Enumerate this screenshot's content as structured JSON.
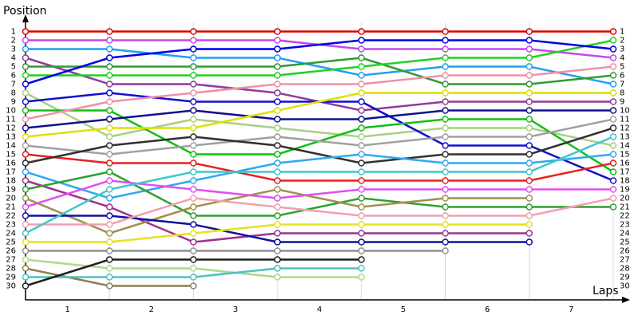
{
  "chart_data": {
    "type": "line",
    "ylabel": "Position",
    "xlabel": "Laps",
    "x": [
      0,
      1,
      2,
      3,
      4,
      5,
      6,
      7
    ],
    "xlim": [
      0,
      7
    ],
    "xticks": [
      {
        "value": 0.5,
        "label": "1"
      },
      {
        "value": 1.5,
        "label": "2"
      },
      {
        "value": 2.5,
        "label": "3"
      },
      {
        "value": 3.5,
        "label": "4"
      },
      {
        "value": 4.5,
        "label": "5"
      },
      {
        "value": 5.5,
        "label": "6"
      },
      {
        "value": 6.5,
        "label": "7"
      }
    ],
    "xgrid": [
      1,
      2,
      3,
      4,
      5,
      6,
      7
    ],
    "ylim": [
      31.5,
      0
    ],
    "inverted": true,
    "yticks": [
      1,
      2,
      3,
      4,
      5,
      6,
      7,
      8,
      9,
      10,
      11,
      12,
      13,
      14,
      15,
      16,
      17,
      18,
      19,
      20,
      21,
      22,
      23,
      24,
      25,
      26,
      27,
      28,
      29,
      30
    ],
    "series": [
      {
        "color": "#e00000",
        "values": [
          1,
          1,
          1,
          1,
          1,
          1,
          1,
          1
        ]
      },
      {
        "color": "#c448f0",
        "values": [
          2,
          2,
          2,
          2,
          3,
          3,
          3,
          4
        ]
      },
      {
        "color": "#20a0f0",
        "values": [
          3,
          3,
          4,
          4,
          6,
          5,
          5,
          7
        ]
      },
      {
        "color": "#903c9c",
        "values": [
          4,
          7,
          7,
          8,
          10,
          9,
          9,
          9
        ]
      },
      {
        "color": "#309a30",
        "values": [
          5,
          5,
          5,
          5,
          4,
          7,
          7,
          6
        ]
      },
      {
        "color": "#22d022",
        "values": [
          6,
          6,
          6,
          6,
          5,
          4,
          4,
          2
        ]
      },
      {
        "color": "#0000e8",
        "values": [
          7,
          4,
          3,
          3,
          2,
          2,
          2,
          3
        ]
      },
      {
        "color": "#a8d080",
        "values": [
          8,
          13,
          11,
          12,
          13,
          12,
          12,
          14
        ]
      },
      {
        "color": "#1010d0",
        "values": [
          9,
          8,
          9,
          9,
          9,
          14,
          14,
          18
        ]
      },
      {
        "color": "#10c010",
        "values": [
          10,
          10,
          15,
          15,
          12,
          11,
          11,
          17
        ]
      },
      {
        "color": "#f090a8",
        "values": [
          11,
          9,
          8,
          7,
          7,
          6,
          6,
          5
        ]
      },
      {
        "color": "#101090",
        "values": [
          12,
          11,
          10,
          11,
          11,
          10,
          10,
          10
        ]
      },
      {
        "color": "#e0e000",
        "values": [
          13,
          12,
          12,
          10,
          8,
          8,
          8,
          8
        ]
      },
      {
        "color": "#a0a0a0",
        "values": [
          14,
          15,
          14,
          13,
          14,
          13,
          13,
          11
        ]
      },
      {
        "color": "#e82020",
        "values": [
          15,
          16,
          16,
          18,
          18,
          18,
          18,
          16
        ]
      },
      {
        "color": "#303030",
        "values": [
          16,
          14,
          13,
          14,
          16,
          15,
          15,
          12
        ]
      },
      {
        "color": "#30a8f0",
        "values": [
          17,
          20,
          18,
          16,
          15,
          16,
          16,
          15
        ]
      },
      {
        "color": "#a03090",
        "values": [
          18,
          21,
          25,
          24,
          24,
          24,
          24,
          null
        ]
      },
      {
        "color": "#30a030",
        "values": [
          19,
          17,
          22,
          22,
          20,
          21,
          21,
          21
        ]
      },
      {
        "color": "#a09050",
        "values": [
          20,
          24,
          21,
          19,
          21,
          20,
          20,
          null
        ]
      },
      {
        "color": "#e050f0",
        "values": [
          21,
          18,
          19,
          20,
          19,
          19,
          19,
          19
        ]
      },
      {
        "color": "#1010a0",
        "values": [
          22,
          22,
          23,
          25,
          25,
          25,
          25,
          null
        ]
      },
      {
        "color": "#f0a0b0",
        "values": [
          23,
          23,
          20,
          21,
          22,
          22,
          22,
          20
        ]
      },
      {
        "color": "#40c8c8",
        "values": [
          24,
          19,
          17,
          17,
          17,
          17,
          17,
          13
        ]
      },
      {
        "color": "#e8e020",
        "values": [
          25,
          25,
          24,
          23,
          23,
          23,
          23,
          null
        ]
      },
      {
        "color": "#909090",
        "values": [
          26,
          26,
          26,
          26,
          26,
          26,
          null,
          null
        ]
      },
      {
        "color": "#b0d890",
        "values": [
          27,
          28,
          28,
          29,
          29,
          null,
          null,
          null
        ]
      },
      {
        "color": "#908050",
        "values": [
          28,
          30,
          30,
          null,
          null,
          null,
          null,
          null
        ]
      },
      {
        "color": "#50c0c0",
        "values": [
          29,
          29,
          29,
          28,
          28,
          null,
          null,
          null
        ]
      },
      {
        "color": "#202020",
        "values": [
          30,
          27,
          27,
          27,
          27,
          null,
          null,
          null
        ]
      }
    ]
  }
}
